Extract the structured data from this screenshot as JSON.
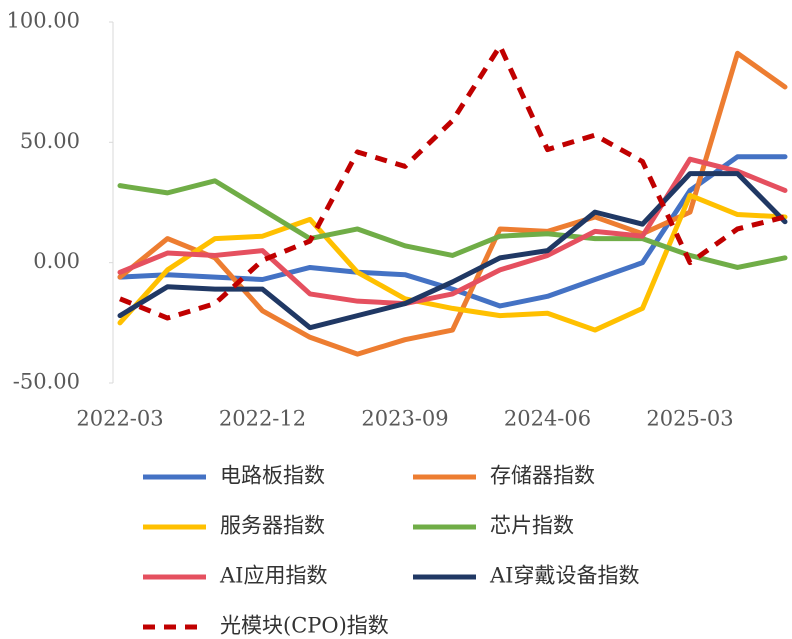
{
  "chart_data": {
    "type": "line",
    "categories": [
      "2022-03",
      null,
      null,
      "2022-12",
      null,
      null,
      "2023-09",
      null,
      null,
      "2024-06",
      null,
      null,
      "2025-03",
      null,
      null
    ],
    "ylim": [
      -50,
      100
    ],
    "yticks": [
      {
        "value": -50,
        "label": "-50.00"
      },
      {
        "value": 0,
        "label": "0.00"
      },
      {
        "value": 50,
        "label": "50.00"
      },
      {
        "value": 100,
        "label": "100.00"
      }
    ],
    "grid": false,
    "series": [
      {
        "name": "电路板指数",
        "color": "#4472c4",
        "values": [
          -6,
          -5,
          -6,
          -7,
          -2,
          -4,
          -5,
          -11,
          -18,
          -14,
          -7,
          0,
          30,
          44,
          44
        ]
      },
      {
        "name": "存储器指数",
        "color": "#ed7d31",
        "values": [
          -6,
          10,
          2,
          -20,
          -31,
          -38,
          -32,
          -28,
          14,
          13,
          19,
          12,
          21,
          87,
          73
        ]
      },
      {
        "name": "服务器指数",
        "color": "#ffc000",
        "values": [
          -25,
          -3,
          10,
          11,
          18,
          -4,
          -15,
          -19,
          -22,
          -21,
          -28,
          -19,
          28,
          20,
          19
        ]
      },
      {
        "name": "芯片指数",
        "color": "#70ad47",
        "values": [
          32,
          29,
          34,
          22,
          10,
          14,
          7,
          3,
          11,
          12,
          10,
          10,
          3,
          -2,
          2
        ]
      },
      {
        "name": "AI应用指数",
        "color": "#e5505f",
        "values": [
          -4,
          4,
          3,
          5,
          -13,
          -16,
          -17,
          -13,
          -3,
          3,
          13,
          11,
          43,
          38,
          30
        ]
      },
      {
        "name": "AI穿戴设备指数",
        "color": "#203864",
        "values": [
          -22,
          -10,
          -11,
          -11,
          -27,
          -22,
          -17,
          -8,
          2,
          5,
          21,
          16,
          37,
          37,
          17
        ]
      },
      {
        "name": "光模块(CPO)指数",
        "color": "#c00000",
        "dashed": true,
        "values": [
          -15,
          -23,
          -17,
          1,
          9,
          46,
          40,
          59,
          90,
          47,
          53,
          42,
          0,
          14,
          19
        ]
      }
    ]
  }
}
